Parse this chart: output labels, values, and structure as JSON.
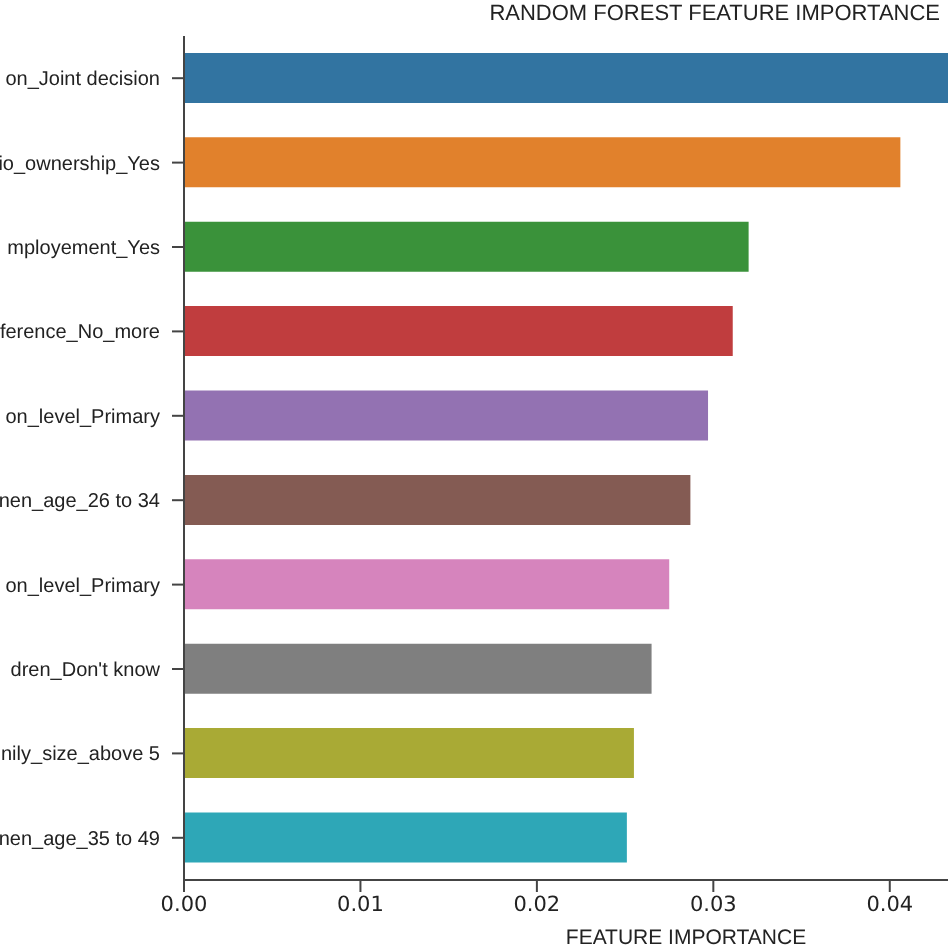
{
  "chart_data": {
    "type": "bar",
    "orientation": "horizontal",
    "title": "RANDOM FOREST FEATURE IMPORTANCE",
    "xlabel": "FEATURE IMPORTANCE",
    "categories": [
      "on_Joint decision",
      "io_ownership_Yes",
      "mployement_Yes",
      "ference_No_more",
      "on_level_Primary",
      "nen_age_26 to 34",
      "on_level_Primary",
      "dren_Don't know",
      "nily_size_above 5",
      "nen_age_35 to 49"
    ],
    "values": [
      0.0433,
      0.0406,
      0.032,
      0.0311,
      0.0297,
      0.0287,
      0.0275,
      0.0265,
      0.0255,
      0.0251
    ],
    "colors": [
      "#3274a1",
      "#e1812c",
      "#3a923a",
      "#c03d3e",
      "#9372b2",
      "#845b53",
      "#d684bd",
      "#7f7f7f",
      "#a9aa35",
      "#2ea7b7"
    ],
    "xlim": [
      0,
      0.0433
    ],
    "xticks": [
      {
        "value": 0,
        "label": "0.00"
      },
      {
        "value": 0.01,
        "label": "0.01"
      },
      {
        "value": 0.02,
        "label": "0.02"
      },
      {
        "value": 0.03,
        "label": "0.03"
      },
      {
        "value": 0.04,
        "label": "0.04"
      }
    ],
    "grid": false,
    "legend": false
  }
}
